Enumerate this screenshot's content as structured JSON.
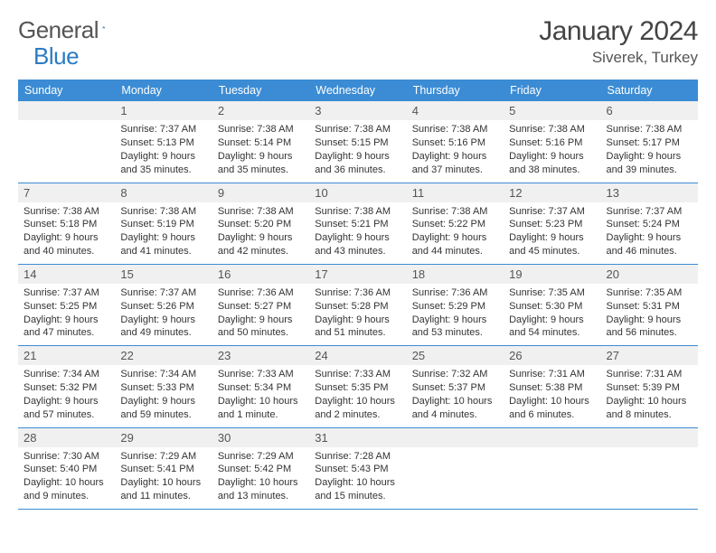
{
  "logo": {
    "text1": "General",
    "text2": "Blue"
  },
  "title": "January 2024",
  "location": "Siverek, Turkey",
  "colors": {
    "header_bg": "#3b8cd4",
    "header_text": "#ffffff",
    "row_border": "#3b8cd4",
    "daynum_bg": "#f0f0f0",
    "daynum_text": "#555555",
    "body_text": "#333333",
    "logo_gray": "#555555",
    "logo_blue": "#2a7bc4"
  },
  "weekdays": [
    "Sunday",
    "Monday",
    "Tuesday",
    "Wednesday",
    "Thursday",
    "Friday",
    "Saturday"
  ],
  "weeks": [
    [
      null,
      {
        "n": "1",
        "sr": "7:37 AM",
        "ss": "5:13 PM",
        "dl": "9 hours and 35 minutes."
      },
      {
        "n": "2",
        "sr": "7:38 AM",
        "ss": "5:14 PM",
        "dl": "9 hours and 35 minutes."
      },
      {
        "n": "3",
        "sr": "7:38 AM",
        "ss": "5:15 PM",
        "dl": "9 hours and 36 minutes."
      },
      {
        "n": "4",
        "sr": "7:38 AM",
        "ss": "5:16 PM",
        "dl": "9 hours and 37 minutes."
      },
      {
        "n": "5",
        "sr": "7:38 AM",
        "ss": "5:16 PM",
        "dl": "9 hours and 38 minutes."
      },
      {
        "n": "6",
        "sr": "7:38 AM",
        "ss": "5:17 PM",
        "dl": "9 hours and 39 minutes."
      }
    ],
    [
      {
        "n": "7",
        "sr": "7:38 AM",
        "ss": "5:18 PM",
        "dl": "9 hours and 40 minutes."
      },
      {
        "n": "8",
        "sr": "7:38 AM",
        "ss": "5:19 PM",
        "dl": "9 hours and 41 minutes."
      },
      {
        "n": "9",
        "sr": "7:38 AM",
        "ss": "5:20 PM",
        "dl": "9 hours and 42 minutes."
      },
      {
        "n": "10",
        "sr": "7:38 AM",
        "ss": "5:21 PM",
        "dl": "9 hours and 43 minutes."
      },
      {
        "n": "11",
        "sr": "7:38 AM",
        "ss": "5:22 PM",
        "dl": "9 hours and 44 minutes."
      },
      {
        "n": "12",
        "sr": "7:37 AM",
        "ss": "5:23 PM",
        "dl": "9 hours and 45 minutes."
      },
      {
        "n": "13",
        "sr": "7:37 AM",
        "ss": "5:24 PM",
        "dl": "9 hours and 46 minutes."
      }
    ],
    [
      {
        "n": "14",
        "sr": "7:37 AM",
        "ss": "5:25 PM",
        "dl": "9 hours and 47 minutes."
      },
      {
        "n": "15",
        "sr": "7:37 AM",
        "ss": "5:26 PM",
        "dl": "9 hours and 49 minutes."
      },
      {
        "n": "16",
        "sr": "7:36 AM",
        "ss": "5:27 PM",
        "dl": "9 hours and 50 minutes."
      },
      {
        "n": "17",
        "sr": "7:36 AM",
        "ss": "5:28 PM",
        "dl": "9 hours and 51 minutes."
      },
      {
        "n": "18",
        "sr": "7:36 AM",
        "ss": "5:29 PM",
        "dl": "9 hours and 53 minutes."
      },
      {
        "n": "19",
        "sr": "7:35 AM",
        "ss": "5:30 PM",
        "dl": "9 hours and 54 minutes."
      },
      {
        "n": "20",
        "sr": "7:35 AM",
        "ss": "5:31 PM",
        "dl": "9 hours and 56 minutes."
      }
    ],
    [
      {
        "n": "21",
        "sr": "7:34 AM",
        "ss": "5:32 PM",
        "dl": "9 hours and 57 minutes."
      },
      {
        "n": "22",
        "sr": "7:34 AM",
        "ss": "5:33 PM",
        "dl": "9 hours and 59 minutes."
      },
      {
        "n": "23",
        "sr": "7:33 AM",
        "ss": "5:34 PM",
        "dl": "10 hours and 1 minute."
      },
      {
        "n": "24",
        "sr": "7:33 AM",
        "ss": "5:35 PM",
        "dl": "10 hours and 2 minutes."
      },
      {
        "n": "25",
        "sr": "7:32 AM",
        "ss": "5:37 PM",
        "dl": "10 hours and 4 minutes."
      },
      {
        "n": "26",
        "sr": "7:31 AM",
        "ss": "5:38 PM",
        "dl": "10 hours and 6 minutes."
      },
      {
        "n": "27",
        "sr": "7:31 AM",
        "ss": "5:39 PM",
        "dl": "10 hours and 8 minutes."
      }
    ],
    [
      {
        "n": "28",
        "sr": "7:30 AM",
        "ss": "5:40 PM",
        "dl": "10 hours and 9 minutes."
      },
      {
        "n": "29",
        "sr": "7:29 AM",
        "ss": "5:41 PM",
        "dl": "10 hours and 11 minutes."
      },
      {
        "n": "30",
        "sr": "7:29 AM",
        "ss": "5:42 PM",
        "dl": "10 hours and 13 minutes."
      },
      {
        "n": "31",
        "sr": "7:28 AM",
        "ss": "5:43 PM",
        "dl": "10 hours and 15 minutes."
      },
      null,
      null,
      null
    ]
  ]
}
